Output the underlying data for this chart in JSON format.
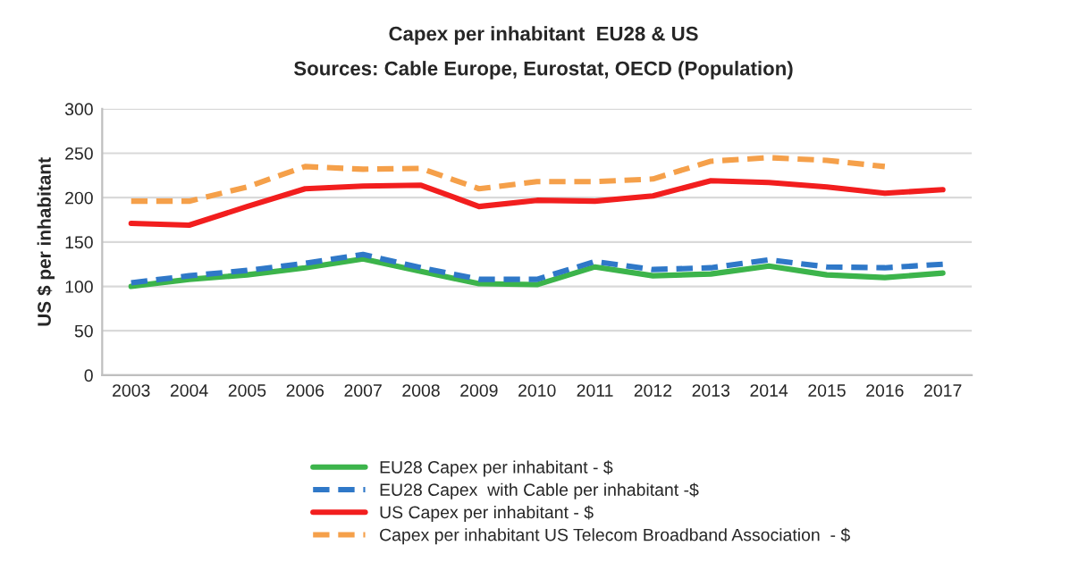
{
  "chart_data": {
    "type": "line",
    "title": "Capex per inhabitant  EU28 & US",
    "subtitle": "Sources: Cable Europe, Eurostat, OECD (Population)",
    "ylabel": "US $ per inhabitant",
    "categories": [
      "2003",
      "2004",
      "2005",
      "2006",
      "2007",
      "2008",
      "2009",
      "2010",
      "2011",
      "2012",
      "2013",
      "2014",
      "2015",
      "2016",
      "2017"
    ],
    "series": [
      {
        "name": "EU28 Capex per inhabitant - $",
        "color": "#3cb44b",
        "line_style": "solid",
        "values": [
          100,
          108,
          113,
          121,
          131,
          117,
          103,
          102,
          122,
          112,
          114,
          123,
          113,
          110,
          115
        ]
      },
      {
        "name": "EU28 Capex  with Cable per inhabitant -$",
        "color": "#2f78c8",
        "line_style": "dashed",
        "values": [
          104,
          112,
          118,
          126,
          136,
          121,
          108,
          108,
          128,
          119,
          121,
          130,
          122,
          121,
          125
        ]
      },
      {
        "name": "US Capex per inhabitant - $",
        "color": "#f21e1e",
        "line_style": "solid",
        "values": [
          171,
          169,
          190,
          210,
          213,
          214,
          190,
          197,
          196,
          202,
          219,
          217,
          212,
          205,
          209
        ]
      },
      {
        "name": "Capex per inhabitant US Telecom Broadband Association  - $",
        "color": "#f5a04a",
        "line_style": "dashed",
        "values": [
          196,
          196,
          212,
          235,
          232,
          233,
          210,
          218,
          218,
          221,
          241,
          245,
          242,
          235,
          null
        ]
      }
    ],
    "ylim": [
      0,
      300
    ],
    "yticks": [
      0,
      50,
      100,
      150,
      200,
      250,
      300
    ],
    "grid": "y",
    "legend": "bottom",
    "marker": "none"
  }
}
